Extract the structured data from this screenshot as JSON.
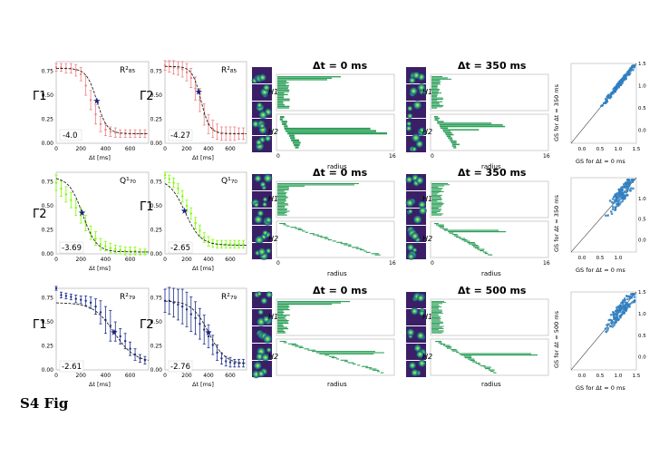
{
  "figure_label": "S4 Fig",
  "colors": {
    "red": "#f08080",
    "green": "#7cfc00",
    "navy": "#1c2e8a",
    "bar": "#2ea05a",
    "scatter": "#2f7fc1"
  },
  "rows": [
    {
      "fit_panels": [
        {
          "ylabel": "Γ1",
          "legend": "R²₈₅",
          "slope": "-4.0",
          "xlabel": "Δt [ms]"
        },
        {
          "ylabel": "Γ2",
          "legend": "R²₈₅",
          "slope": "-4.27",
          "xlabel": "Δt [ms]"
        }
      ],
      "barcodes": [
        {
          "title": "Δt = 0 ms",
          "h1": "H1",
          "h2": "H2",
          "xlabel": "radius",
          "xmin": "0",
          "xmax": "16"
        },
        {
          "title": "Δt = 350 ms",
          "h1": "H1",
          "h2": "H2",
          "xlabel": "radius",
          "xmin": "0",
          "xmax": "16"
        }
      ],
      "scatter": {
        "xlabel": "GS for Δt = 0 ms",
        "ylabel": "GS for Δt = 350 ms"
      }
    },
    {
      "fit_panels": [
        {
          "ylabel": "Γ2",
          "legend": "Q¹₇₀",
          "slope": "-3.69",
          "xlabel": "Δt [ms]"
        },
        {
          "ylabel": "Γ1",
          "legend": "Q¹₇₀",
          "slope": "-2.65",
          "xlabel": "Δt [ms]"
        }
      ],
      "barcodes": [
        {
          "title": "Δt = 0 ms",
          "h1": "H1",
          "h2": "H2",
          "xlabel": "radius",
          "xmin": "0",
          "xmax": "16"
        },
        {
          "title": "Δt = 350 ms",
          "h1": "H1",
          "h2": "H2",
          "xlabel": "radius",
          "xmin": "0",
          "xmax": "16"
        }
      ],
      "scatter": {
        "xlabel": "GS for Δt = 0 ms",
        "ylabel": "GS for Δt = 350 ms"
      }
    },
    {
      "fit_panels": [
        {
          "ylabel": "Γ1",
          "legend": "R²₇₉",
          "slope": "-2.61",
          "xlabel": "Δt [ms]"
        },
        {
          "ylabel": "Γ2",
          "legend": "R²₇₉",
          "slope": "-2.76",
          "xlabel": "Δt [ms]"
        }
      ],
      "barcodes": [
        {
          "title": "Δt = 0 ms",
          "h1": "H1",
          "h2": "H2",
          "xlabel": "radius",
          "xmin": "0",
          "xmax": "16"
        },
        {
          "title": "Δt = 500 ms",
          "h1": "H1",
          "h2": "H2",
          "xlabel": "radius",
          "xmin": "0",
          "xmax": "16"
        }
      ],
      "scatter": {
        "xlabel": "GS for Δt = 0 ms",
        "ylabel": "GS for Δt = 500 ms"
      }
    }
  ],
  "chart_data": [
    {
      "type": "scatter",
      "panel": "r0-fit0",
      "color": "red",
      "xlim": [
        0,
        750
      ],
      "ylim": [
        0,
        0.85
      ],
      "xticks": [
        "0",
        "200",
        "400",
        "600"
      ],
      "yticks": [
        "0.00",
        "0.25",
        "0.50",
        "0.75"
      ],
      "x": [
        0,
        40,
        80,
        120,
        160,
        200,
        240,
        280,
        320,
        360,
        400,
        440,
        480,
        520,
        560,
        600,
        640,
        680,
        720
      ],
      "y": [
        0.79,
        0.79,
        0.78,
        0.78,
        0.76,
        0.72,
        0.6,
        0.45,
        0.3,
        0.2,
        0.14,
        0.12,
        0.11,
        0.1,
        0.1,
        0.1,
        0.1,
        0.1,
        0.1
      ],
      "err": [
        0.04,
        0.04,
        0.05,
        0.05,
        0.06,
        0.07,
        0.1,
        0.1,
        0.1,
        0.08,
        0.06,
        0.05,
        0.05,
        0.04,
        0.04,
        0.04,
        0.04,
        0.04,
        0.04
      ],
      "fit": {
        "L": 0.78,
        "B": 0.1,
        "x0": 330,
        "k": 0.024
      },
      "marker_x": 330
    },
    {
      "type": "scatter",
      "panel": "r0-fit1",
      "color": "red",
      "xlim": [
        0,
        750
      ],
      "ylim": [
        0,
        0.85
      ],
      "xticks": [
        "0",
        "200",
        "400",
        "600"
      ],
      "yticks": [
        "0.00",
        "0.25",
        "0.50",
        "0.75"
      ],
      "x": [
        0,
        40,
        80,
        120,
        160,
        200,
        240,
        280,
        320,
        360,
        400,
        440,
        480,
        520,
        560,
        600,
        640,
        680,
        720
      ],
      "y": [
        0.81,
        0.8,
        0.79,
        0.78,
        0.77,
        0.74,
        0.68,
        0.57,
        0.45,
        0.3,
        0.2,
        0.15,
        0.12,
        0.1,
        0.1,
        0.1,
        0.1,
        0.1,
        0.1
      ],
      "err": [
        0.05,
        0.06,
        0.07,
        0.07,
        0.08,
        0.09,
        0.1,
        0.12,
        0.12,
        0.11,
        0.1,
        0.09,
        0.08,
        0.07,
        0.07,
        0.07,
        0.07,
        0.06,
        0.06
      ],
      "fit": {
        "L": 0.8,
        "B": 0.1,
        "x0": 330,
        "k": 0.025
      },
      "marker_x": 310
    },
    {
      "type": "scatter",
      "panel": "r1-fit0",
      "color": "green",
      "xlim": [
        0,
        750
      ],
      "ylim": [
        0,
        0.85
      ],
      "xticks": [
        "0",
        "200",
        "400",
        "600"
      ],
      "yticks": [
        "0.00",
        "0.25",
        "0.50",
        "0.75"
      ],
      "x": [
        0,
        40,
        80,
        120,
        160,
        200,
        240,
        280,
        320,
        360,
        400,
        440,
        480,
        520,
        560,
        600,
        640,
        680,
        720
      ],
      "y": [
        0.74,
        0.68,
        0.62,
        0.56,
        0.48,
        0.4,
        0.32,
        0.22,
        0.16,
        0.1,
        0.08,
        0.06,
        0.05,
        0.04,
        0.03,
        0.03,
        0.03,
        0.02,
        0.02
      ],
      "err": [
        0.08,
        0.08,
        0.08,
        0.08,
        0.08,
        0.08,
        0.08,
        0.07,
        0.07,
        0.06,
        0.05,
        0.05,
        0.04,
        0.04,
        0.04,
        0.04,
        0.04,
        0.03,
        0.03
      ],
      "fit": {
        "L": 0.8,
        "B": 0.02,
        "x0": 215,
        "k": 0.018
      },
      "marker_x": 210
    },
    {
      "type": "scatter",
      "panel": "r1-fit1",
      "color": "green",
      "xlim": [
        0,
        750
      ],
      "ylim": [
        0,
        0.85
      ],
      "xticks": [
        "0",
        "200",
        "400",
        "600"
      ],
      "yticks": [
        "0.00",
        "0.25",
        "0.50",
        "0.75"
      ],
      "x": [
        0,
        40,
        80,
        120,
        160,
        200,
        240,
        280,
        320,
        360,
        400,
        440,
        480,
        520,
        560,
        600,
        640,
        680,
        720
      ],
      "y": [
        0.82,
        0.78,
        0.74,
        0.68,
        0.6,
        0.5,
        0.42,
        0.32,
        0.24,
        0.17,
        0.13,
        0.11,
        0.1,
        0.1,
        0.1,
        0.1,
        0.1,
        0.1,
        0.1
      ],
      "err": [
        0.03,
        0.04,
        0.05,
        0.05,
        0.06,
        0.06,
        0.06,
        0.06,
        0.06,
        0.05,
        0.05,
        0.04,
        0.04,
        0.04,
        0.04,
        0.04,
        0.04,
        0.04,
        0.04
      ],
      "fit": {
        "L": 0.78,
        "B": 0.09,
        "x0": 185,
        "k": 0.014
      },
      "marker_x": 180
    },
    {
      "type": "scatter",
      "panel": "r2-fit0",
      "color": "navy",
      "xlim": [
        0,
        750
      ],
      "ylim": [
        0,
        0.85
      ],
      "xticks": [
        "0",
        "200",
        "400",
        "600"
      ],
      "yticks": [
        "0.00",
        "0.25",
        "0.50",
        "0.75"
      ],
      "x": [
        0,
        40,
        80,
        120,
        160,
        200,
        240,
        280,
        320,
        360,
        400,
        440,
        480,
        520,
        560,
        600,
        640,
        680,
        720
      ],
      "y": [
        0.85,
        0.78,
        0.77,
        0.76,
        0.74,
        0.73,
        0.72,
        0.7,
        0.66,
        0.6,
        0.52,
        0.46,
        0.4,
        0.35,
        0.3,
        0.22,
        0.16,
        0.12,
        0.1
      ],
      "err": [
        0.02,
        0.03,
        0.03,
        0.03,
        0.04,
        0.04,
        0.05,
        0.06,
        0.08,
        0.12,
        0.14,
        0.16,
        0.1,
        0.08,
        0.08,
        0.07,
        0.06,
        0.04,
        0.04
      ],
      "fit": {
        "L": 0.7,
        "B": 0.08,
        "x0": 470,
        "k": 0.012
      },
      "marker_x": 470
    },
    {
      "type": "scatter",
      "panel": "r2-fit1",
      "color": "navy",
      "xlim": [
        0,
        750
      ],
      "ylim": [
        0,
        0.85
      ],
      "xticks": [
        "0",
        "200",
        "400",
        "600"
      ],
      "yticks": [
        "0.00",
        "0.25",
        "0.50",
        "0.75"
      ],
      "x": [
        0,
        40,
        80,
        120,
        160,
        200,
        240,
        280,
        320,
        360,
        400,
        440,
        480,
        520,
        560,
        600,
        640,
        680,
        720
      ],
      "y": [
        0.72,
        0.72,
        0.7,
        0.68,
        0.66,
        0.63,
        0.58,
        0.54,
        0.48,
        0.42,
        0.35,
        0.26,
        0.18,
        0.12,
        0.09,
        0.08,
        0.07,
        0.07,
        0.07
      ],
      "err": [
        0.12,
        0.14,
        0.15,
        0.16,
        0.18,
        0.18,
        0.18,
        0.17,
        0.16,
        0.15,
        0.12,
        0.1,
        0.08,
        0.06,
        0.05,
        0.05,
        0.04,
        0.04,
        0.04
      ],
      "fit": {
        "L": 0.72,
        "B": 0.06,
        "x0": 400,
        "k": 0.013
      },
      "marker_x": 400
    },
    {
      "type": "scatter",
      "panel": "r0-gs",
      "xlim": [
        -0.3,
        1.5
      ],
      "ylim": [
        -0.3,
        1.5
      ],
      "xticks": [
        "0.0",
        "0.5",
        "1.0",
        "1.5"
      ],
      "yticks": [
        "0.0",
        "0.5",
        "1.0",
        "1.5"
      ],
      "cloud": {
        "center": 1.05,
        "spread": 0.25,
        "noise": 0.06,
        "n": 160
      }
    },
    {
      "type": "scatter",
      "panel": "r1-gs",
      "xlim": [
        -0.3,
        1.5
      ],
      "ylim": [
        -0.3,
        1.5
      ],
      "xticks": [
        "0.0",
        "0.5",
        "1.0"
      ],
      "yticks": [
        "0.0",
        "0.5",
        "1.0"
      ],
      "cloud": {
        "center": 1.1,
        "spread": 0.22,
        "noise": 0.2,
        "n": 140
      }
    },
    {
      "type": "scatter",
      "panel": "r2-gs",
      "xlim": [
        -0.3,
        1.5
      ],
      "ylim": [
        -0.3,
        1.5
      ],
      "xticks": [
        "0.0",
        "0.5",
        "1.0",
        "1.5"
      ],
      "yticks": [
        "0.0",
        "0.5",
        "1.0",
        "1.5"
      ],
      "cloud": {
        "center": 1.1,
        "spread": 0.25,
        "noise": 0.18,
        "n": 160
      }
    }
  ]
}
